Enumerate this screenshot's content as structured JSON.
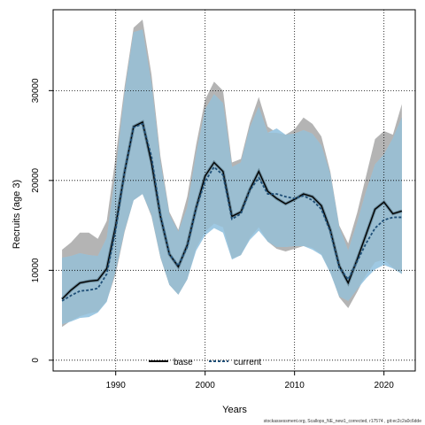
{
  "chart_data": {
    "type": "area",
    "xlabel": "Years",
    "ylabel": "Recruits (age 3)",
    "footnote": "stockassessment.org, Scallops_NE_new1_corrected, r17574 , git:ec2c2a0c6dde",
    "xlim": [
      1983,
      2023.5
    ],
    "ylim": [
      -1200,
      39000
    ],
    "xticks": [
      1990,
      2000,
      2010,
      2020
    ],
    "yticks": [
      0,
      10000,
      20000,
      30000
    ],
    "grid": true,
    "legend_position": "bottom-center",
    "colors": {
      "base_band": "#b4b4b4",
      "current_band": "#9fc9e3",
      "overlap": "#9bbed1",
      "base_line": "#000000",
      "current_line": "#1f4f77"
    },
    "x": [
      1984,
      1985,
      1986,
      1987,
      1988,
      1989,
      1990,
      1991,
      1992,
      1993,
      1994,
      1995,
      1996,
      1997,
      1998,
      1999,
      2000,
      2001,
      2002,
      2003,
      2004,
      2005,
      2006,
      2007,
      2008,
      2009,
      2010,
      2011,
      2012,
      2013,
      2014,
      2015,
      2016,
      2017,
      2018,
      2019,
      2020,
      2021,
      2022
    ],
    "series": [
      {
        "name": "base",
        "values": [
          6800,
          7800,
          8600,
          8800,
          8900,
          10200,
          15000,
          21000,
          26000,
          26500,
          22000,
          16000,
          11800,
          10400,
          12800,
          17000,
          20500,
          22000,
          21000,
          16000,
          16500,
          19000,
          21000,
          18800,
          18000,
          17400,
          17900,
          18500,
          18200,
          17200,
          14500,
          10500,
          8600,
          11200,
          14000,
          16800,
          17600,
          16300,
          16600
        ],
        "lower": [
          3700,
          4400,
          4900,
          5200,
          5400,
          6600,
          9600,
          14300,
          17800,
          18500,
          16000,
          11400,
          8400,
          7300,
          9000,
          12500,
          14300,
          15200,
          14800,
          11300,
          11700,
          13600,
          14800,
          13200,
          12400,
          12100,
          12400,
          12700,
          12500,
          11800,
          9800,
          7000,
          5800,
          7600,
          9500,
          10900,
          11200,
          10300,
          9600
        ],
        "upper": [
          12300,
          13100,
          14200,
          14200,
          13500,
          15500,
          22700,
          30500,
          37000,
          37900,
          31800,
          22700,
          16500,
          14500,
          18200,
          24000,
          29000,
          31000,
          30000,
          22000,
          22400,
          26400,
          29300,
          26000,
          25300,
          25100,
          25700,
          27000,
          26300,
          24900,
          21000,
          15000,
          13000,
          16400,
          20500,
          24600,
          25500,
          25100,
          28500
        ]
      },
      {
        "name": "current",
        "values": [
          6600,
          7200,
          7700,
          7800,
          8000,
          9600,
          14500,
          21000,
          25900,
          26300,
          22700,
          16200,
          11800,
          10500,
          12600,
          16900,
          19900,
          21500,
          20600,
          15700,
          16300,
          18900,
          20300,
          18500,
          18500,
          18200,
          18000,
          18300,
          17800,
          16800,
          14300,
          10300,
          9000,
          11000,
          13000,
          14700,
          15600,
          15900,
          15900
        ],
        "lower": [
          4000,
          4300,
          4700,
          4800,
          5300,
          6500,
          10000,
          14500,
          17800,
          18500,
          16200,
          11500,
          8400,
          7300,
          9000,
          12200,
          13900,
          14700,
          14200,
          11200,
          11700,
          13400,
          14400,
          13200,
          12600,
          12600,
          12700,
          12700,
          12300,
          11700,
          9700,
          7100,
          6600,
          7900,
          9100,
          10100,
          10600,
          10200,
          9600
        ],
        "upper": [
          11400,
          11600,
          11900,
          11700,
          11600,
          13600,
          21000,
          29800,
          36500,
          36800,
          30800,
          22000,
          16200,
          14300,
          17000,
          23000,
          27900,
          29600,
          28600,
          21500,
          22000,
          25900,
          28200,
          25300,
          25800,
          25100,
          25200,
          25600,
          25200,
          23900,
          20700,
          14800,
          12200,
          15300,
          18800,
          21800,
          22900,
          24700,
          27000
        ]
      }
    ]
  }
}
